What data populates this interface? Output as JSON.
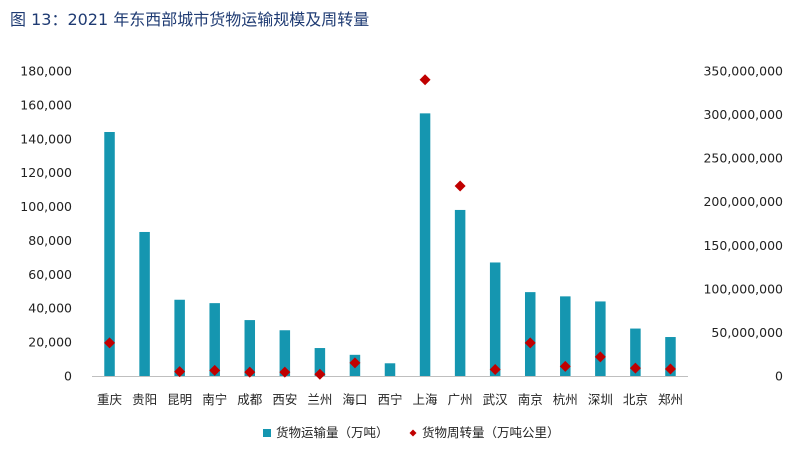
{
  "figure_title": "图 13：2021 年东西部城市货物运输规模及周转量",
  "chart_data": {
    "type": "bar+scatter",
    "categories": [
      "重庆",
      "贵阳",
      "昆明",
      "南宁",
      "成都",
      "西安",
      "兰州",
      "海口",
      "西宁",
      "上海",
      "广州",
      "武汉",
      "南京",
      "杭州",
      "深圳",
      "北京",
      "郑州"
    ],
    "series": [
      {
        "name": "货物运输量（万吨）",
        "type": "bar",
        "axis": "left",
        "color": "#1596b0",
        "values": [
          144000,
          85000,
          45000,
          43000,
          33000,
          27000,
          16500,
          12500,
          7500,
          155000,
          98000,
          67000,
          49500,
          47000,
          44000,
          28000,
          23000
        ]
      },
      {
        "name": "货物周转量（万吨公里）",
        "type": "scatter",
        "axis": "right",
        "color": "#c00000",
        "marker": "diamond",
        "values": [
          38000000,
          null,
          5000000,
          6500000,
          4500000,
          4500000,
          2000000,
          15000000,
          null,
          340000000,
          218000000,
          7500000,
          38000000,
          11000000,
          22000000,
          9000000,
          8000000
        ]
      }
    ],
    "left_axis": {
      "ylim": [
        0,
        180000
      ],
      "ticks": [
        0,
        20000,
        40000,
        60000,
        80000,
        100000,
        120000,
        140000,
        160000,
        180000
      ],
      "tick_labels": [
        "0",
        "20,000",
        "40,000",
        "60,000",
        "80,000",
        "100,000",
        "120,000",
        "140,000",
        "160,000",
        "180,000"
      ]
    },
    "right_axis": {
      "ylim": [
        0,
        350000000
      ],
      "ticks": [
        0,
        50000000,
        100000000,
        150000000,
        200000000,
        250000000,
        300000000,
        350000000
      ],
      "tick_labels": [
        "0",
        "50,000,000",
        "100,000,000",
        "150,000,000",
        "200,000,000",
        "250,000,000",
        "300,000,000",
        "350,000,000"
      ]
    },
    "grid": false,
    "legend_position": "bottom"
  }
}
